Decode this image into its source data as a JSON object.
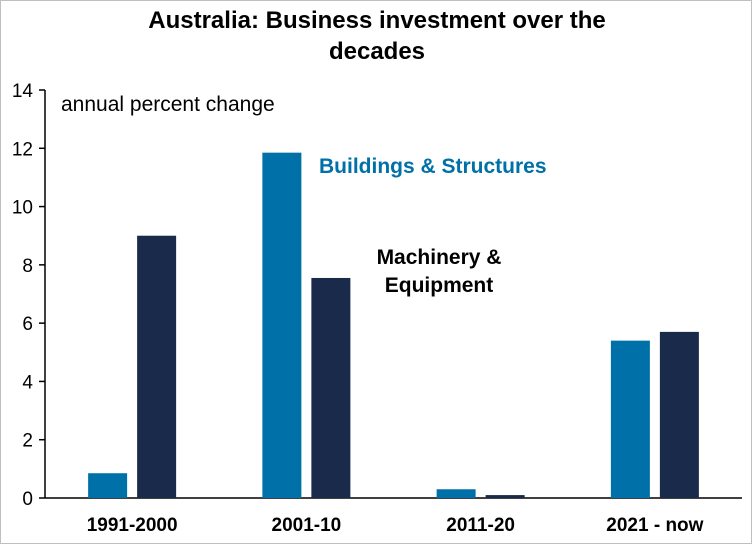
{
  "chart_data": {
    "type": "bar",
    "title_lines": [
      "Australia: Business investment over the",
      "decades"
    ],
    "unit_label": "annual percent change",
    "categories": [
      "1991-2000",
      "2001-10",
      "2011-20",
      "2021 - now"
    ],
    "series": [
      {
        "name": "Buildings & Structures",
        "name_lines": [
          "Buildings & Structures"
        ],
        "color": "#0070a8",
        "values": [
          0.85,
          11.85,
          0.3,
          5.4
        ]
      },
      {
        "name": "Machinery & Equipment",
        "name_lines": [
          "Machinery &",
          "Equipment"
        ],
        "color": "#1a2a4a",
        "values": [
          9.0,
          7.55,
          0.1,
          5.7
        ]
      }
    ],
    "ylim": [
      0,
      14
    ],
    "yticks": [
      "0",
      "2",
      "4",
      "6",
      "8",
      "10",
      "12",
      "14"
    ],
    "legend_placement": "in-plot",
    "grid": false
  }
}
